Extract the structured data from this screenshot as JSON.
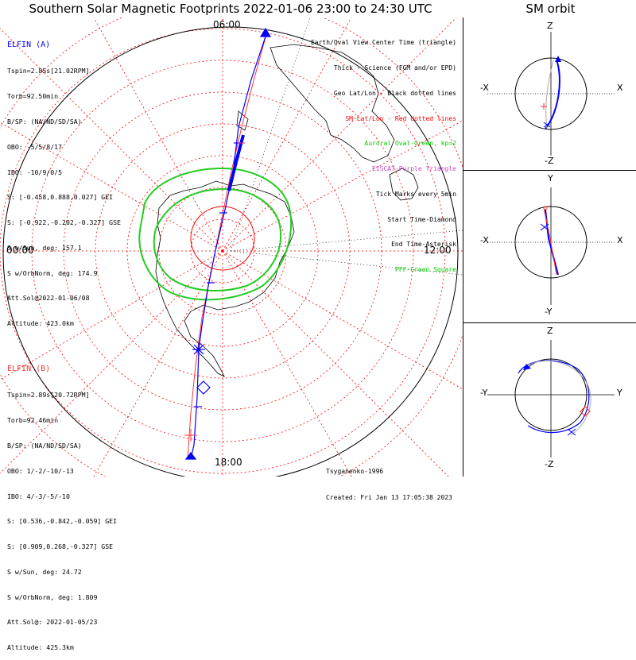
{
  "title": "Southern Solar Magnetic Footprints 2022-01-06 23:00 to 24:30 UTC",
  "sm_title": "SM orbit",
  "elfin_a": {
    "name": "ELFIN (A)",
    "lines": [
      "Tspin=2.85s[21.02RPM]",
      "Torb=92.50min",
      "B/SP: (NA/ND/SD/SA)",
      "OBO: -5/5/8/17",
      "IBO: -10/9/0/5",
      "S: [-0.458,0.888,0.027] GEI",
      "S: [-0.922,-0.202,-0.327] GSE",
      "S w/Sun, deg: 157.1",
      "S w/OrbNorm, deg: 174.9",
      "Att.Sol@2022-01-06/08",
      "Altitude: 423.0km"
    ],
    "color": "#0000ff"
  },
  "elfin_b": {
    "name": "ELFIN (B)",
    "lines": [
      "Tspin=2.89s[20.72RPM]",
      "Torb=92.46min",
      "B/SP: (NA/ND/SD/SA)",
      "OBO: 1/-2/-10/-13",
      "IBO: 4/-3/-5/-10",
      "S: [0.536,-0.842,-0.059] GEI",
      "S: [0.909,0.268,-0.327] GSE",
      "S w/Sun, deg: 24.72",
      "S w/OrbNorm, deg: 1.809",
      "Att.Sol@: 2022-01-05/23",
      "Altitude: 425.3km"
    ],
    "color": "#ff3333"
  },
  "legend": [
    {
      "text": "Earth/Oval View Center Time (triangle)",
      "color": "#000000"
    },
    {
      "text": "Thick - Science (FGM and/or EPD)",
      "color": "#000000"
    },
    {
      "text": "Geo Lat/Lon - Black dotted lines",
      "color": "#000000"
    },
    {
      "text": "SM Lat/Lon - Red dotted lines",
      "color": "#ff0000"
    },
    {
      "text": "Auroral Oval-Green, kp=2",
      "color": "#00cc00"
    },
    {
      "text": "EISCAT-Purple Triangle",
      "color": "#cc44cc"
    },
    {
      "text": "Tick Marks every 5min",
      "color": "#000000"
    },
    {
      "text": "Start Time-Diamond",
      "color": "#000000"
    },
    {
      "text": "End Time-Asterisk",
      "color": "#000000"
    },
    {
      "text": "PFF-Green Square",
      "color": "#00cc00"
    }
  ],
  "mlt_labels": {
    "top": "06:00",
    "left": "00:00",
    "right": "12:00",
    "bottom": "18:00"
  },
  "credits": {
    "model": "Tsyganenko-1996",
    "created": "Created: Fri Jan 13 17:05:38 2023"
  },
  "sm_panels": [
    {
      "top": "Z",
      "bottom": "-Z",
      "left": "-X",
      "right": "X"
    },
    {
      "top": "Y",
      "bottom": "-Y",
      "left": "-X",
      "right": "X"
    },
    {
      "top": "Z",
      "bottom": "-Z",
      "left": "-Y",
      "right": "Y"
    }
  ],
  "colors": {
    "sm_grid": "#ff0000",
    "geo_grid": "#000000",
    "oval": "#00cc00",
    "track_a": "#0000ff",
    "track_b": "#ff3333",
    "grey": "#aaaaaa"
  }
}
